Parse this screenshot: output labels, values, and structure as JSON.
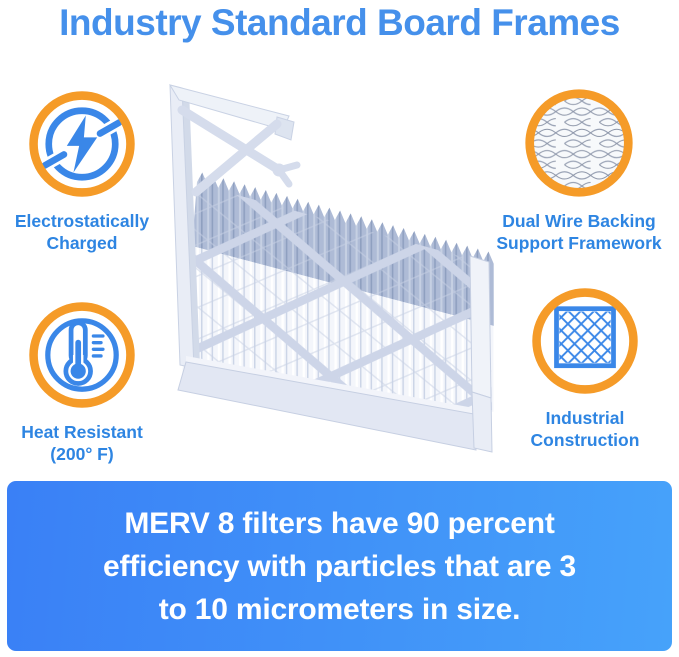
{
  "title": {
    "text": "Industry Standard Board Frames"
  },
  "features": [
    {
      "id": "electrostatically-charged",
      "icon": "lightning-icon",
      "lines": [
        "Electrostatically",
        "Charged"
      ]
    },
    {
      "id": "dual-wire-backing",
      "icon": "wire-mesh-icon",
      "lines": [
        "Dual Wire Backing",
        "Support Framework"
      ]
    },
    {
      "id": "heat-resistant",
      "icon": "thermometer-icon",
      "lines": [
        "Heat Resistant",
        "(200° F)"
      ]
    },
    {
      "id": "industrial-construction",
      "icon": "lattice-grid-icon",
      "lines": [
        "Industrial",
        "Construction"
      ]
    }
  ],
  "illustration": {
    "name": "pleated-air-filter-cutaway"
  },
  "banner": {
    "lines": [
      "MERV 8 filters have 90 percent",
      "efficiency with particles that are 3",
      "to 10 micrometers in size."
    ]
  },
  "colors": {
    "title_blue": "#4590eb",
    "label_blue": "#2e85e2",
    "accent_orange": "#f59b28",
    "icon_blue": "#3a87e8",
    "banner_gradient_from": "#3a80f6",
    "banner_gradient_to": "#46a2fa",
    "banner_text": "#ffffff"
  }
}
